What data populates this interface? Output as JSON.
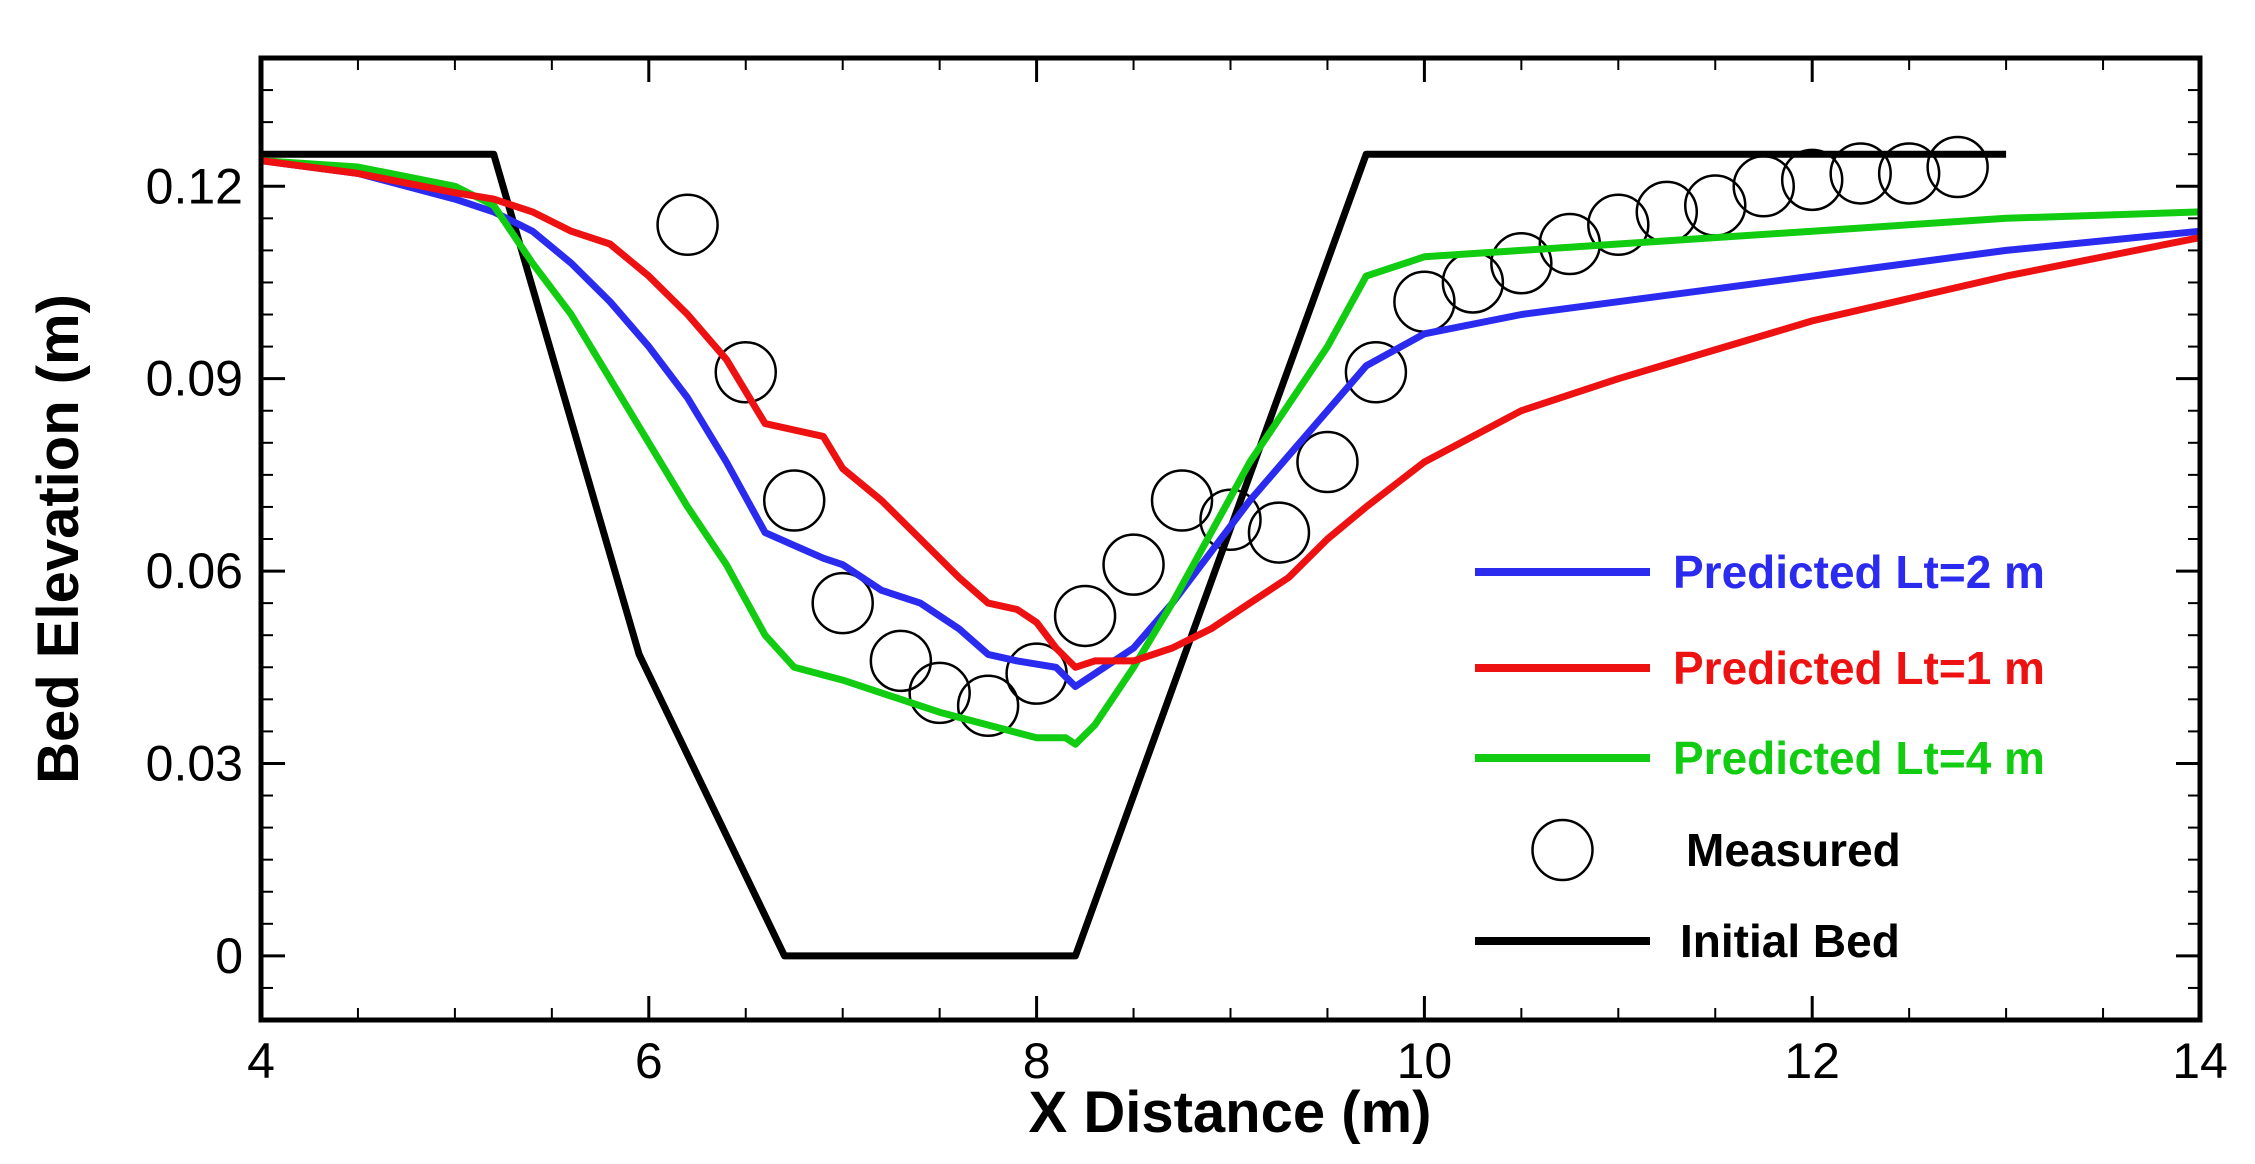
{
  "chart_data": {
    "type": "line",
    "title": "",
    "xlabel": "X Distance (m)",
    "ylabel": "Bed Elevation (m)",
    "xlim": [
      4,
      14
    ],
    "ylim": [
      -0.01,
      0.14
    ],
    "xticks": [
      4,
      6,
      8,
      10,
      12,
      14
    ],
    "xtick_labels": [
      "4",
      "6",
      "8",
      "10",
      "12",
      "14"
    ],
    "yticks": [
      0,
      0.03,
      0.06,
      0.09,
      0.12
    ],
    "ytick_labels": [
      "0",
      "0.03",
      "0.06",
      "0.09",
      "0.12"
    ],
    "legend_position": "lower-right",
    "grid": false,
    "series": [
      {
        "name": "Predicted Lt=2 m",
        "color": "#2b2bf0",
        "kind": "line",
        "x": [
          4.0,
          4.5,
          5.0,
          5.2,
          5.4,
          5.6,
          5.8,
          6.0,
          6.2,
          6.4,
          6.6,
          6.75,
          6.9,
          7.0,
          7.2,
          7.4,
          7.6,
          7.75,
          7.9,
          8.1,
          8.2,
          8.3,
          8.5,
          8.7,
          8.9,
          9.1,
          9.3,
          9.5,
          9.7,
          10.0,
          10.5,
          11.0,
          12.0,
          13.0,
          14.0
        ],
        "y": [
          0.124,
          0.122,
          0.118,
          0.116,
          0.113,
          0.108,
          0.102,
          0.095,
          0.087,
          0.077,
          0.066,
          0.064,
          0.062,
          0.061,
          0.057,
          0.055,
          0.051,
          0.047,
          0.046,
          0.045,
          0.042,
          0.044,
          0.048,
          0.055,
          0.063,
          0.071,
          0.078,
          0.085,
          0.092,
          0.097,
          0.1,
          0.102,
          0.106,
          0.11,
          0.113
        ]
      },
      {
        "name": "Predicted Lt=1 m",
        "color": "#ee1111",
        "kind": "line",
        "x": [
          4.0,
          4.5,
          5.0,
          5.2,
          5.4,
          5.6,
          5.8,
          6.0,
          6.2,
          6.4,
          6.6,
          6.75,
          6.9,
          7.0,
          7.2,
          7.4,
          7.6,
          7.75,
          7.9,
          8.0,
          8.1,
          8.2,
          8.3,
          8.5,
          8.7,
          8.9,
          9.1,
          9.3,
          9.5,
          9.7,
          10.0,
          10.5,
          11.0,
          12.0,
          13.0,
          14.0
        ],
        "y": [
          0.124,
          0.122,
          0.119,
          0.118,
          0.116,
          0.113,
          0.111,
          0.106,
          0.1,
          0.093,
          0.083,
          0.082,
          0.081,
          0.076,
          0.071,
          0.065,
          0.059,
          0.055,
          0.054,
          0.052,
          0.048,
          0.045,
          0.046,
          0.046,
          0.048,
          0.051,
          0.055,
          0.059,
          0.065,
          0.07,
          0.077,
          0.085,
          0.09,
          0.099,
          0.106,
          0.112
        ]
      },
      {
        "name": "Predicted Lt=4 m",
        "color": "#11cc11",
        "kind": "line",
        "x": [
          4.0,
          4.5,
          5.0,
          5.2,
          5.4,
          5.6,
          5.8,
          6.0,
          6.2,
          6.4,
          6.6,
          6.75,
          7.0,
          7.5,
          8.0,
          8.15,
          8.2,
          8.3,
          8.5,
          8.7,
          8.9,
          9.1,
          9.3,
          9.5,
          9.7,
          10.0,
          10.5,
          11.0,
          12.0,
          13.0,
          14.0
        ],
        "y": [
          0.124,
          0.123,
          0.12,
          0.117,
          0.108,
          0.1,
          0.09,
          0.08,
          0.07,
          0.061,
          0.05,
          0.045,
          0.043,
          0.038,
          0.034,
          0.034,
          0.033,
          0.036,
          0.045,
          0.055,
          0.066,
          0.077,
          0.086,
          0.095,
          0.106,
          0.109,
          0.11,
          0.111,
          0.113,
          0.115,
          0.116
        ]
      },
      {
        "name": "Measured",
        "color": "#000000",
        "kind": "markers",
        "x": [
          6.2,
          6.5,
          6.75,
          7.0,
          7.3,
          7.5,
          7.75,
          8.0,
          8.25,
          8.5,
          8.75,
          9.0,
          9.25,
          9.5,
          9.75,
          10.0,
          10.25,
          10.5,
          10.75,
          11.0,
          11.25,
          11.5,
          11.75,
          12.0,
          12.25,
          12.5,
          12.75
        ],
        "y": [
          0.114,
          0.091,
          0.071,
          0.055,
          0.046,
          0.041,
          0.039,
          0.044,
          0.053,
          0.061,
          0.071,
          0.068,
          0.066,
          0.077,
          0.091,
          0.102,
          0.105,
          0.108,
          0.111,
          0.114,
          0.116,
          0.117,
          0.12,
          0.121,
          0.122,
          0.122,
          0.123
        ]
      },
      {
        "name": "Initial Bed",
        "color": "#000000",
        "kind": "line",
        "x": [
          4.0,
          5.2,
          5.95,
          6.7,
          8.2,
          9.7,
          13.0
        ],
        "y": [
          0.125,
          0.125,
          0.047,
          0.0,
          0.0,
          0.125,
          0.125
        ]
      }
    ]
  }
}
